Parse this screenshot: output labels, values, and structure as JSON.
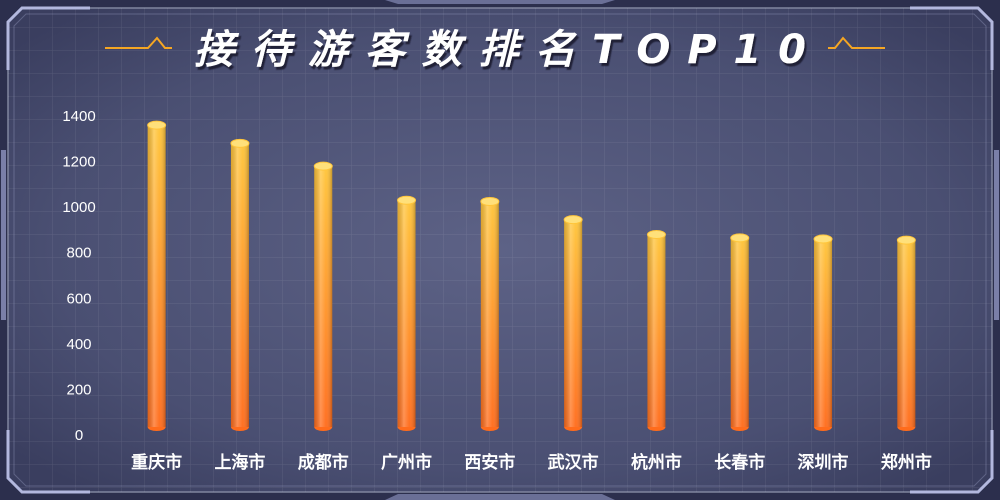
{
  "chart_data": {
    "type": "bar",
    "title": "接待游客数排名TOP10",
    "categories": [
      "重庆市",
      "上海市",
      "成都市",
      "广州市",
      "西安市",
      "武汉市",
      "杭州市",
      "长春市",
      "深圳市",
      "郑州市"
    ],
    "values": [
      1360,
      1280,
      1180,
      1030,
      1025,
      945,
      880,
      865,
      860,
      855
    ],
    "ylim": [
      0,
      1400
    ],
    "yticks": [
      0,
      200,
      400,
      600,
      800,
      1000,
      1200,
      1400
    ],
    "grid": true
  },
  "colors": {
    "panel": "#4a4f72",
    "frame": "#2c2f4d",
    "bar_top": "#ffc53a",
    "bar_bottom": "#ff6c1c",
    "bar_cap": "#ffe07a",
    "accent_line": "#f5a623",
    "text": "#ffffff"
  }
}
